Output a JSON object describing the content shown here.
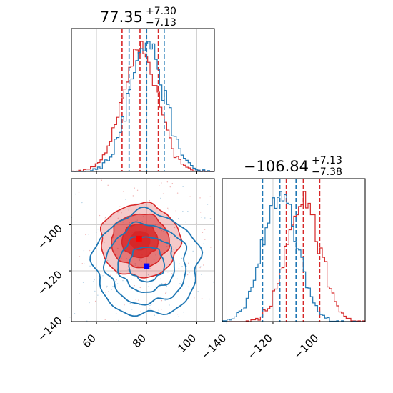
{
  "colors": {
    "red": "#d62728",
    "blue": "#1f77b4",
    "red_fill": "#f08a8c",
    "grid": "#cfcfcf",
    "marker_red": "#ff0000",
    "marker_blue": "#0000ff"
  },
  "titles": {
    "top": {
      "main": "77.35",
      "plus": "+7.30",
      "minus": "−7.13"
    },
    "right": {
      "main": "−106.84",
      "plus": "+7.13",
      "minus": "−7.38"
    }
  },
  "chart_data": [
    {
      "type": "histogram",
      "panel": "marginal-x",
      "xlim": [
        50,
        107
      ],
      "xticks": [
        60,
        80,
        100
      ],
      "series": [
        {
          "color": "red",
          "mean": 77.35,
          "sigma": 7.2,
          "quantiles": [
            70.2,
            77.35,
            84.65
          ]
        },
        {
          "color": "blue",
          "mean": 80.0,
          "sigma": 7.0,
          "quantiles": [
            73.0,
            80.0,
            87.0
          ]
        }
      ]
    },
    {
      "type": "contour",
      "panel": "joint",
      "xlim": [
        50,
        107
      ],
      "ylim": [
        -142,
        -80
      ],
      "xticks": [
        60,
        80,
        100
      ],
      "xtick_labels": [
        "60",
        "80",
        "100"
      ],
      "yticks": [
        -100,
        -120,
        -140
      ],
      "ytick_labels": [
        "−100",
        "−120",
        "−140"
      ],
      "series": [
        {
          "color": "red",
          "center": [
            77.35,
            -106.84
          ],
          "sigma": [
            7.2,
            7.25
          ],
          "levels": [
            0.55,
            1.0,
            1.6,
            2.2
          ]
        },
        {
          "color": "blue",
          "center": [
            80.0,
            -117.0
          ],
          "sigma": [
            7.0,
            7.5
          ],
          "levels": [
            1.0,
            1.6,
            2.3,
            3.0
          ]
        }
      ],
      "markers": [
        {
          "color": "marker_red",
          "x": 77.0,
          "y": -106.0
        },
        {
          "color": "marker_blue",
          "x": 80.0,
          "y": -118.0
        }
      ]
    },
    {
      "type": "histogram",
      "panel": "marginal-y",
      "xlim": [
        -142,
        -80
      ],
      "xticks": [
        -140,
        -120,
        -100
      ],
      "xtick_labels": [
        "−140",
        "−120",
        "−100"
      ],
      "series": [
        {
          "color": "red",
          "mean": -106.84,
          "sigma": 7.25,
          "quantiles": [
            -114.22,
            -106.84,
            -99.71
          ]
        },
        {
          "color": "blue",
          "mean": -117.0,
          "sigma": 7.5,
          "quantiles": [
            -124.5,
            -117.0,
            -110.0
          ]
        }
      ]
    }
  ]
}
